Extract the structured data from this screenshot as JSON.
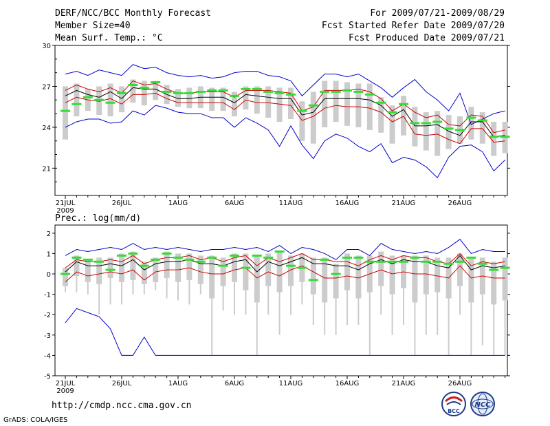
{
  "header": {
    "title": "DERF/NCC/BCC Monthly Forecast",
    "member_size": "Member Size=40",
    "variable": "Mean Surf. Temp.: °C",
    "forecast_period": "For 2009/07/21-2009/08/29",
    "refer_date": "Fcst Started Refer Date 2009/07/20",
    "produced_date": "Fcst Produced Date 2009/07/21"
  },
  "footer": {
    "url": "http://cmdp.ncc.cma.gov.cn",
    "grads_credit": "GrADS: COLA/IGES",
    "logo_bcc": "BCC",
    "logo_ncc": "NCC"
  },
  "colors": {
    "envelope": "#0000cc",
    "spread": "#cc0000",
    "mean": "#000000",
    "median": "#33dd33",
    "box": "#cccccc"
  },
  "chart_data": [
    {
      "type": "box",
      "id": "temperature",
      "title": "Mean Surf. Temp.: °C",
      "ylim": [
        19,
        30
      ],
      "yticks": [
        21,
        24,
        27,
        30
      ],
      "x_tick_labels": [
        "21JUL",
        "26JUL",
        "1AUG",
        "6AUG",
        "11AUG",
        "16AUG",
        "21AUG",
        "26AUG"
      ],
      "x_tick_days": [
        1,
        6,
        11,
        16,
        21,
        26,
        31,
        36
      ],
      "x_sublabel": "2009",
      "days": 40,
      "series": {
        "max": [
          27.9,
          28.1,
          27.8,
          28.2,
          28.0,
          27.8,
          28.6,
          28.3,
          28.4,
          28.0,
          27.8,
          27.7,
          27.8,
          27.6,
          27.7,
          28.0,
          28.1,
          28.1,
          27.8,
          27.7,
          27.4,
          26.3,
          27.1,
          27.9,
          27.9,
          27.7,
          27.9,
          27.4,
          26.9,
          26.2,
          26.9,
          27.5,
          26.6,
          26.0,
          25.2,
          26.5,
          24.2,
          24.6,
          25.0,
          25.2
        ],
        "mean_plus": [
          26.7,
          27.1,
          26.8,
          26.6,
          26.9,
          26.5,
          27.4,
          27.1,
          27.2,
          26.8,
          26.5,
          26.5,
          26.6,
          26.6,
          26.6,
          26.2,
          26.7,
          26.7,
          26.7,
          26.6,
          26.5,
          25.2,
          25.5,
          26.7,
          26.7,
          26.7,
          26.8,
          26.6,
          26.1,
          25.2,
          25.7,
          25.1,
          24.7,
          24.9,
          24.2,
          24.1,
          24.9,
          24.8,
          23.6,
          23.8
        ],
        "mean": [
          26.3,
          26.7,
          26.4,
          26.2,
          26.6,
          26.1,
          26.9,
          26.8,
          26.8,
          26.4,
          26.1,
          26.1,
          26.2,
          26.2,
          26.2,
          25.8,
          26.4,
          26.3,
          26.2,
          26.1,
          26.1,
          24.9,
          25.1,
          26.1,
          26.1,
          26.1,
          26.1,
          26.0,
          25.6,
          24.8,
          25.3,
          24.1,
          24.1,
          24.2,
          23.7,
          23.4,
          24.4,
          24.4,
          23.3,
          23.4
        ],
        "mean_minus": [
          25.8,
          26.2,
          26.0,
          25.9,
          26.1,
          25.7,
          26.4,
          26.4,
          26.5,
          26.1,
          25.8,
          25.8,
          25.8,
          25.8,
          25.8,
          25.3,
          26.0,
          25.8,
          25.8,
          25.7,
          25.6,
          24.5,
          24.8,
          25.4,
          25.6,
          25.5,
          25.5,
          25.4,
          25.1,
          24.4,
          24.8,
          23.5,
          23.4,
          23.5,
          23.1,
          22.8,
          23.9,
          23.9,
          22.9,
          23.0
        ],
        "min": [
          24.0,
          24.4,
          24.6,
          24.6,
          24.3,
          24.4,
          25.2,
          24.9,
          25.6,
          25.4,
          25.1,
          25.0,
          25.0,
          24.7,
          24.7,
          24.0,
          24.7,
          24.3,
          23.8,
          22.6,
          24.1,
          22.7,
          21.7,
          23.0,
          23.5,
          23.2,
          22.6,
          22.2,
          22.8,
          21.4,
          21.8,
          21.6,
          21.1,
          20.3,
          21.8,
          22.6,
          22.7,
          22.2,
          20.8,
          21.6
        ],
        "median": [
          25.2,
          25.7,
          26.2,
          26.0,
          25.8,
          26.5,
          27.1,
          26.9,
          27.3,
          26.6,
          26.5,
          26.5,
          26.6,
          26.7,
          26.7,
          26.3,
          26.8,
          26.8,
          26.6,
          26.5,
          26.4,
          25.2,
          25.6,
          26.6,
          26.6,
          26.7,
          26.6,
          26.4,
          25.8,
          25.1,
          25.7,
          24.3,
          24.3,
          24.4,
          23.9,
          23.8,
          24.7,
          24.5,
          23.3,
          23.3
        ],
        "box_top": [
          27.0,
          27.2,
          26.8,
          27.0,
          27.2,
          27.0,
          27.5,
          27.4,
          27.4,
          27.1,
          26.8,
          26.9,
          27.0,
          26.9,
          26.9,
          26.6,
          27.0,
          27.0,
          27.0,
          26.9,
          26.9,
          25.9,
          26.6,
          27.4,
          27.4,
          27.3,
          27.2,
          27.2,
          26.2,
          25.6,
          26.3,
          25.5,
          25.1,
          25.2,
          24.9,
          24.8,
          25.5,
          25.1,
          24.4,
          24.4
        ],
        "box_bottom": [
          23.1,
          24.8,
          25.2,
          24.9,
          24.8,
          25.1,
          25.8,
          25.6,
          26.0,
          25.7,
          25.5,
          25.4,
          25.4,
          25.2,
          25.2,
          24.8,
          25.3,
          25.0,
          24.7,
          24.4,
          24.6,
          23.0,
          22.8,
          24.0,
          24.4,
          24.1,
          24.0,
          23.8,
          23.6,
          22.8,
          23.4,
          22.6,
          22.3,
          21.9,
          22.4,
          22.8,
          23.1,
          22.8,
          21.9,
          22.1
        ]
      }
    },
    {
      "type": "box",
      "id": "precipitation",
      "title": "Prec.: log(mm/d)",
      "ylim": [
        -5,
        2.4
      ],
      "yticks": [
        -5,
        -4,
        -3,
        -2,
        -1,
        0,
        1,
        2
      ],
      "x_tick_labels": [
        "21JUL",
        "26JUL",
        "1AUG",
        "6AUG",
        "11AUG",
        "16AUG",
        "21AUG",
        "26AUG"
      ],
      "x_tick_days": [
        1,
        6,
        11,
        16,
        21,
        26,
        31,
        36
      ],
      "x_sublabel": "2009",
      "days": 40,
      "series": {
        "max": [
          0.9,
          1.2,
          1.1,
          1.2,
          1.3,
          1.2,
          1.5,
          1.2,
          1.3,
          1.2,
          1.3,
          1.2,
          1.1,
          1.2,
          1.2,
          1.3,
          1.2,
          1.3,
          1.1,
          1.4,
          1.0,
          1.3,
          1.2,
          1.0,
          0.7,
          1.2,
          1.2,
          0.9,
          1.5,
          1.2,
          1.1,
          1.0,
          1.1,
          1.0,
          1.3,
          1.7,
          1.0,
          1.2,
          1.1,
          1.1
        ],
        "mean": [
          0.1,
          0.6,
          0.4,
          0.4,
          0.5,
          0.4,
          0.7,
          0.2,
          0.5,
          0.6,
          0.6,
          0.7,
          0.5,
          0.5,
          0.4,
          0.6,
          0.7,
          0.1,
          0.6,
          0.4,
          0.6,
          0.8,
          0.5,
          0.5,
          0.4,
          0.4,
          0.2,
          0.5,
          0.7,
          0.5,
          0.7,
          0.6,
          0.6,
          0.4,
          0.3,
          0.9,
          0.2,
          0.4,
          0.3,
          0.4
        ],
        "mean_plus": [
          0.3,
          0.7,
          0.6,
          0.6,
          0.7,
          0.6,
          0.9,
          0.5,
          0.7,
          0.8,
          0.8,
          0.9,
          0.7,
          0.8,
          0.6,
          0.8,
          0.9,
          0.4,
          0.8,
          0.6,
          0.8,
          1.0,
          0.7,
          0.7,
          0.6,
          0.6,
          0.4,
          0.7,
          0.9,
          0.7,
          0.9,
          0.8,
          0.8,
          0.6,
          0.5,
          1.0,
          0.4,
          0.6,
          0.5,
          0.6
        ],
        "mean_minus": [
          -0.4,
          0.1,
          -0.1,
          0.0,
          0.1,
          0.0,
          0.2,
          -0.3,
          0.1,
          0.2,
          0.2,
          0.3,
          0.1,
          0.0,
          0.0,
          0.2,
          0.3,
          -0.2,
          0.1,
          -0.1,
          0.2,
          0.4,
          0.1,
          -0.2,
          -0.2,
          -0.1,
          -0.2,
          0.0,
          0.2,
          0.0,
          0.1,
          0.0,
          0.0,
          -0.1,
          -0.2,
          0.4,
          -0.2,
          -0.1,
          -0.2,
          -0.2
        ],
        "min": [
          -2.4,
          -1.7,
          -1.9,
          -2.1,
          -2.7,
          -4.0,
          -4.0,
          -3.1,
          -4.0,
          -4.0,
          -4.0,
          -4.0,
          -4.0,
          -4.0,
          -4.0,
          -4.0,
          -4.0,
          -4.0,
          -4.0,
          -4.0,
          -4.0,
          -4.0,
          -4.0,
          -4.0,
          -4.0,
          -4.0,
          -4.0,
          -4.0,
          -4.0,
          -4.0,
          -4.0,
          -4.0,
          -4.0,
          -4.0,
          -4.0,
          -4.0,
          -4.0,
          -4.0,
          -4.0,
          -4.0
        ],
        "median": [
          0.0,
          0.8,
          0.7,
          0.6,
          0.2,
          0.9,
          1.0,
          0.4,
          0.7,
          1.0,
          0.8,
          0.7,
          0.6,
          0.8,
          0.4,
          0.9,
          0.3,
          0.9,
          0.8,
          1.1,
          0.4,
          0.3,
          -0.3,
          0.7,
          0.0,
          0.8,
          0.8,
          0.6,
          0.6,
          0.6,
          0.6,
          0.8,
          0.6,
          0.6,
          0.5,
          0.6,
          0.8,
          0.5,
          0.2,
          0.3
        ],
        "box_top": [
          0.3,
          0.9,
          0.7,
          0.8,
          0.8,
          1.0,
          1.1,
          0.6,
          0.8,
          1.1,
          1.0,
          1.0,
          0.9,
          0.9,
          0.8,
          1.0,
          1.0,
          0.9,
          1.0,
          1.1,
          0.9,
          1.0,
          0.8,
          0.8,
          0.5,
          1.0,
          0.9,
          0.9,
          1.1,
          0.9,
          0.9,
          0.9,
          0.9,
          0.8,
          0.8,
          1.0,
          0.8,
          0.8,
          0.6,
          0.8
        ],
        "box_bottom": [
          -0.6,
          -0.1,
          -0.4,
          -0.5,
          -0.2,
          -0.4,
          -0.3,
          -0.5,
          -0.4,
          -0.2,
          -0.4,
          -0.3,
          -0.5,
          -1.2,
          -0.6,
          -0.4,
          -0.8,
          -1.4,
          -0.6,
          -0.9,
          -0.6,
          -0.4,
          -1.0,
          -1.4,
          -1.2,
          -0.8,
          -1.2,
          -0.9,
          -0.6,
          -1.0,
          -0.7,
          -1.4,
          -1.0,
          -0.9,
          -1.2,
          -0.6,
          -1.4,
          -1.0,
          -1.5,
          -1.3
        ],
        "whisker_low": [
          -0.9,
          -0.9,
          -1.0,
          -2.0,
          -1.5,
          -1.5,
          -1.0,
          -1.0,
          -0.8,
          -1.2,
          -1.3,
          -1.5,
          -1.0,
          -4.0,
          -1.8,
          -2.0,
          -2.0,
          -4.0,
          -2.0,
          -3.0,
          -2.0,
          -1.5,
          -2.5,
          -3.0,
          -3.0,
          -2.5,
          -2.5,
          -4.0,
          -2.0,
          -3.0,
          -2.5,
          -4.0,
          -3.0,
          -3.0,
          -4.0,
          -2.0,
          -4.0,
          -3.5,
          -4.0,
          -4.0
        ]
      }
    }
  ]
}
